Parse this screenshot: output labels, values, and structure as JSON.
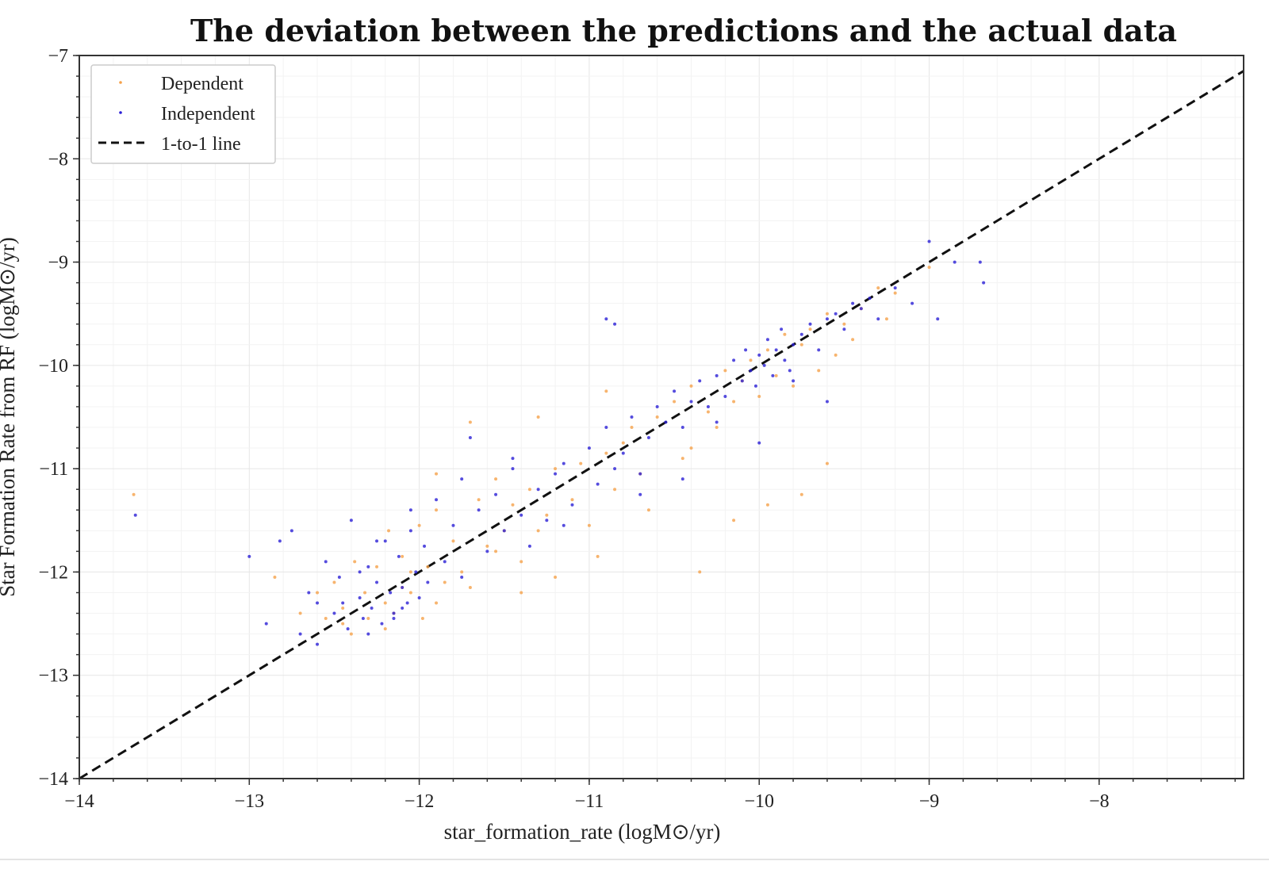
{
  "chart_data": {
    "type": "scatter",
    "title": "The deviation between the predictions and the actual data",
    "xlabel": "star_formation_rate (logM⊙/yr)",
    "ylabel": "Star Formation Rate from RF (logM⊙/yr)",
    "xlim": [
      -14,
      -7.15
    ],
    "ylim": [
      -14,
      -7
    ],
    "xticks": [
      -14,
      -13,
      -12,
      -11,
      -10,
      -9,
      -8
    ],
    "yticks": [
      -14,
      -13,
      -12,
      -11,
      -10,
      -9,
      -8,
      -7
    ],
    "xtick_labels": [
      "−14",
      "−13",
      "−12",
      "−11",
      "−10",
      "−9",
      "−8"
    ],
    "ytick_labels": [
      "−14",
      "−13",
      "−12",
      "−11",
      "−10",
      "−9",
      "−8",
      "−7"
    ],
    "grid": true,
    "legend_position": "top-left",
    "legend": [
      {
        "label": "Dependent",
        "marker": "dot",
        "color": "#f5a14a"
      },
      {
        "label": "Independent",
        "marker": "dot",
        "color": "#2a1fd6"
      },
      {
        "label": "1-to-1 line",
        "marker": "dashed-line",
        "color": "#111111"
      }
    ],
    "reference_line": {
      "name": "1-to-1 line",
      "x": [
        -14,
        -7.15
      ],
      "y": [
        -14,
        -7.15
      ],
      "style": "dashed",
      "color": "#111111"
    },
    "series": [
      {
        "name": "Dependent",
        "color": "#f5a14a",
        "x": [
          -13.68,
          -12.85,
          -12.7,
          -12.6,
          -12.55,
          -12.5,
          -12.45,
          -12.4,
          -12.38,
          -12.32,
          -12.3,
          -12.25,
          -12.2,
          -12.18,
          -12.15,
          -12.1,
          -12.05,
          -12.0,
          -11.98,
          -11.95,
          -11.9,
          -11.85,
          -11.8,
          -11.75,
          -11.7,
          -11.65,
          -11.6,
          -11.55,
          -11.5,
          -11.45,
          -11.4,
          -11.35,
          -11.3,
          -11.25,
          -11.2,
          -11.1,
          -11.05,
          -11.0,
          -10.9,
          -10.85,
          -10.8,
          -10.75,
          -10.7,
          -10.6,
          -10.5,
          -10.45,
          -10.4,
          -10.3,
          -10.25,
          -10.2,
          -10.15,
          -10.1,
          -10.05,
          -10.0,
          -9.95,
          -9.9,
          -9.85,
          -9.8,
          -9.75,
          -9.7,
          -9.65,
          -9.6,
          -9.55,
          -9.5,
          -9.45,
          -9.4,
          -9.3,
          -9.25,
          -9.2,
          -9.0,
          -12.2,
          -12.05,
          -11.9,
          -11.7,
          -11.55,
          -11.4,
          -11.2,
          -10.95,
          -10.65,
          -10.35,
          -10.15,
          -9.95,
          -9.75,
          -9.6,
          -10.4,
          -10.9,
          -11.3,
          -11.9,
          -12.1,
          -12.45
        ],
        "y": [
          -11.25,
          -12.05,
          -12.4,
          -12.2,
          -12.45,
          -12.1,
          -12.35,
          -12.6,
          -11.9,
          -12.2,
          -12.45,
          -11.95,
          -12.3,
          -11.6,
          -12.4,
          -11.85,
          -12.2,
          -11.55,
          -12.45,
          -11.95,
          -11.4,
          -12.1,
          -11.7,
          -12.0,
          -10.55,
          -11.3,
          -11.75,
          -11.1,
          -11.6,
          -11.35,
          -11.9,
          -11.2,
          -11.6,
          -11.45,
          -11.0,
          -11.3,
          -10.95,
          -11.55,
          -10.85,
          -11.2,
          -10.75,
          -10.6,
          -11.05,
          -10.5,
          -10.35,
          -10.9,
          -10.2,
          -10.45,
          -10.6,
          -10.05,
          -10.35,
          -10.15,
          -9.95,
          -10.3,
          -9.85,
          -10.1,
          -9.7,
          -10.2,
          -9.8,
          -9.65,
          -10.05,
          -9.5,
          -9.9,
          -9.6,
          -9.75,
          -9.45,
          -9.25,
          -9.55,
          -9.3,
          -9.05,
          -12.55,
          -12.0,
          -12.3,
          -12.15,
          -11.8,
          -12.2,
          -12.05,
          -11.85,
          -11.4,
          -12.0,
          -11.5,
          -11.35,
          -11.25,
          -10.95,
          -10.8,
          -10.25,
          -10.5,
          -11.05,
          -12.15,
          -12.5
        ]
      },
      {
        "name": "Independent",
        "color": "#2a1fd6",
        "x": [
          -13.67,
          -13.0,
          -12.9,
          -12.82,
          -12.75,
          -12.7,
          -12.65,
          -12.6,
          -12.55,
          -12.5,
          -12.47,
          -12.42,
          -12.4,
          -12.35,
          -12.33,
          -12.3,
          -12.28,
          -12.25,
          -12.22,
          -12.2,
          -12.17,
          -12.15,
          -12.12,
          -12.1,
          -12.07,
          -12.05,
          -12.02,
          -12.0,
          -11.97,
          -11.95,
          -11.9,
          -11.85,
          -11.8,
          -11.75,
          -11.7,
          -11.65,
          -11.6,
          -11.55,
          -11.5,
          -11.45,
          -11.4,
          -11.35,
          -11.3,
          -11.25,
          -11.2,
          -11.15,
          -11.1,
          -11.0,
          -10.95,
          -10.9,
          -10.85,
          -10.8,
          -10.75,
          -10.7,
          -10.65,
          -10.6,
          -10.55,
          -10.5,
          -10.45,
          -10.4,
          -10.35,
          -10.3,
          -10.25,
          -10.2,
          -10.15,
          -10.1,
          -10.08,
          -10.05,
          -10.02,
          -10.0,
          -9.97,
          -9.95,
          -9.92,
          -9.9,
          -9.87,
          -9.85,
          -9.82,
          -9.8,
          -9.75,
          -9.7,
          -9.65,
          -9.6,
          -9.55,
          -9.5,
          -9.45,
          -9.4,
          -9.35,
          -9.3,
          -9.2,
          -9.1,
          -9.0,
          -8.95,
          -8.85,
          -8.7,
          -8.68,
          -10.9,
          -10.85,
          -12.15,
          -12.3,
          -12.45,
          -12.25,
          -12.05,
          -11.75,
          -11.45,
          -11.15,
          -10.7,
          -10.45,
          -10.25,
          -10.0,
          -9.8,
          -9.6,
          -12.6,
          -12.35,
          -12.1
        ],
        "y": [
          -11.45,
          -11.85,
          -12.5,
          -11.7,
          -11.6,
          -12.6,
          -12.2,
          -12.3,
          -11.9,
          -12.4,
          -12.05,
          -12.55,
          -11.5,
          -12.25,
          -12.45,
          -11.95,
          -12.35,
          -12.1,
          -12.5,
          -11.7,
          -12.2,
          -12.4,
          -11.85,
          -12.15,
          -12.3,
          -11.6,
          -12.0,
          -12.25,
          -11.75,
          -12.1,
          -11.3,
          -11.9,
          -11.55,
          -12.05,
          -10.7,
          -11.4,
          -11.8,
          -11.25,
          -11.6,
          -11.0,
          -11.45,
          -11.75,
          -11.2,
          -11.5,
          -11.05,
          -10.95,
          -11.35,
          -10.8,
          -11.15,
          -10.6,
          -11.0,
          -10.85,
          -10.5,
          -11.05,
          -10.7,
          -10.4,
          -10.55,
          -10.25,
          -10.6,
          -10.35,
          -10.15,
          -10.4,
          -10.1,
          -10.3,
          -9.95,
          -10.15,
          -9.85,
          -10.05,
          -10.2,
          -9.9,
          -10.0,
          -9.75,
          -10.1,
          -9.85,
          -9.65,
          -9.95,
          -10.05,
          -9.8,
          -9.7,
          -9.6,
          -9.85,
          -9.55,
          -9.5,
          -9.65,
          -9.4,
          -9.45,
          -9.35,
          -9.55,
          -9.25,
          -9.4,
          -8.8,
          -9.55,
          -9.0,
          -9.0,
          -9.2,
          -9.55,
          -9.6,
          -12.45,
          -12.6,
          -12.3,
          -11.7,
          -11.4,
          -11.1,
          -10.9,
          -11.55,
          -11.25,
          -11.1,
          -10.55,
          -10.75,
          -10.15,
          -10.35,
          -12.7,
          -12.0,
          -12.35
        ]
      }
    ]
  }
}
